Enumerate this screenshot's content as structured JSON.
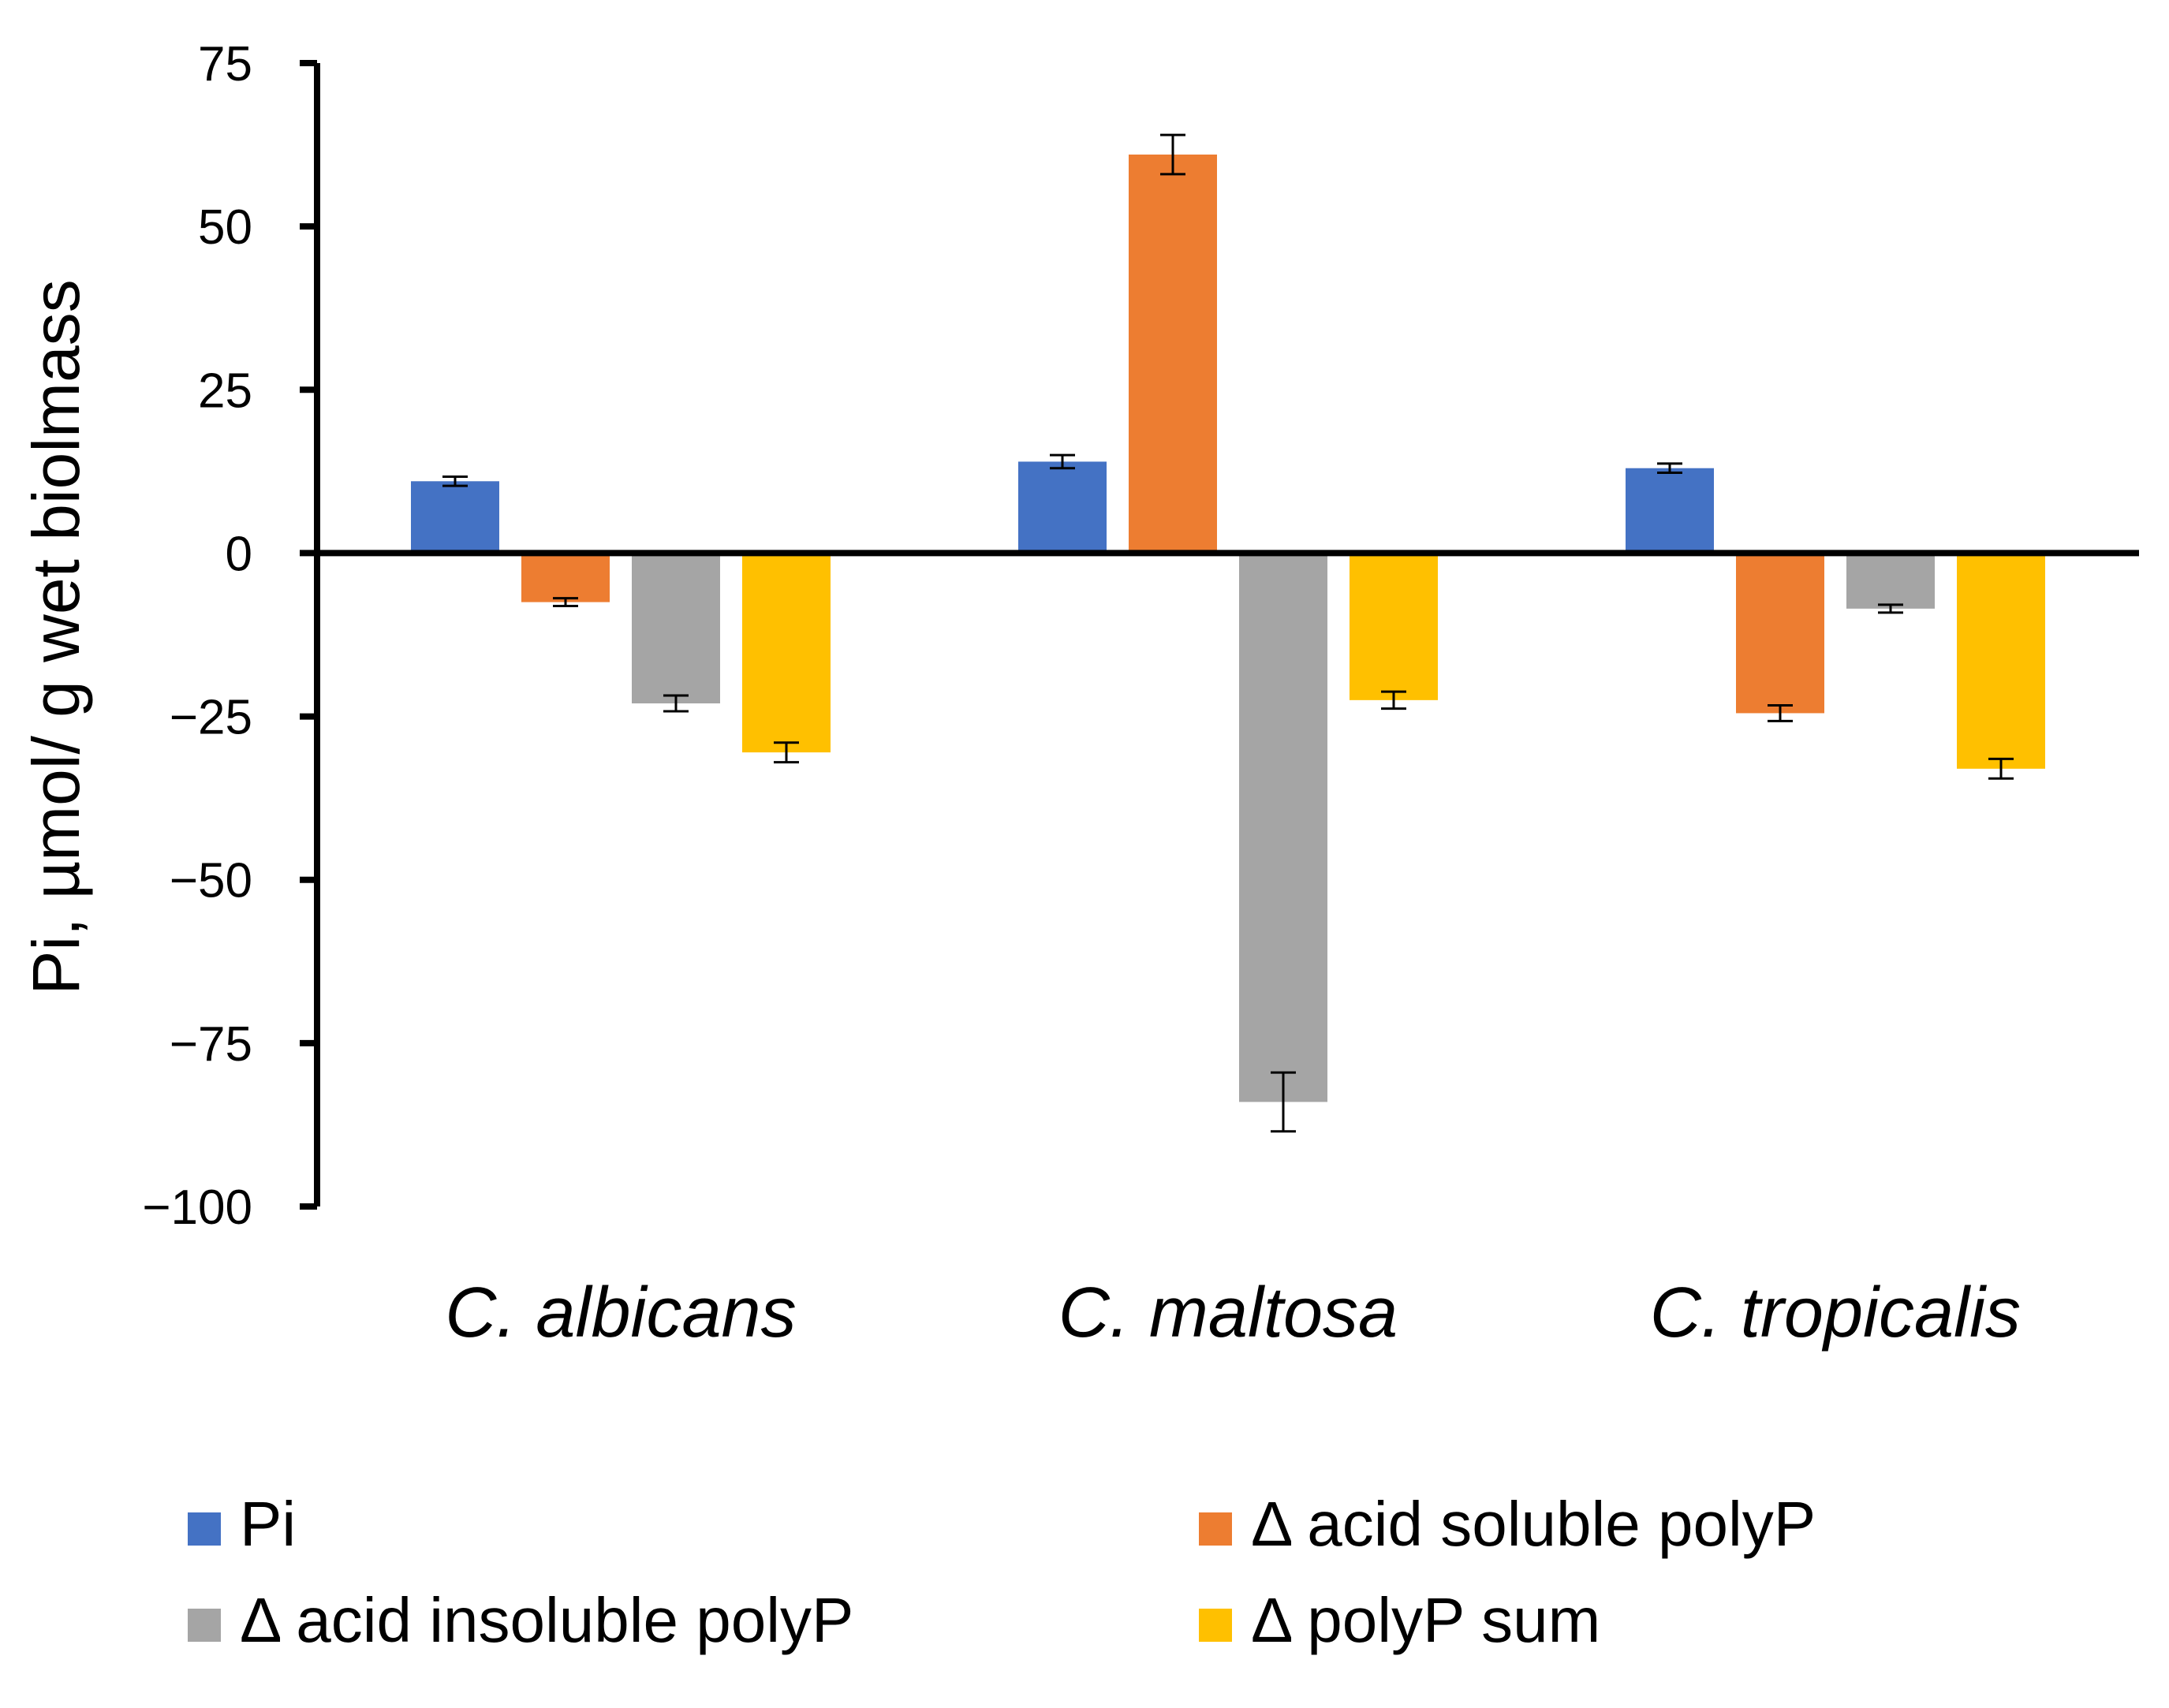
{
  "chart_data": {
    "type": "bar",
    "title": "",
    "xlabel": "",
    "ylabel": "Pi, µmol/ g wet biolmass",
    "ylim": [
      -100,
      75
    ],
    "yticks": [
      75,
      50,
      25,
      0,
      -25,
      -50,
      -75,
      -100
    ],
    "ytick_labels": [
      "75",
      "50",
      "25",
      "0",
      "−25",
      "−50",
      "−75",
      "−100"
    ],
    "categories": [
      "C. albicans",
      "C. maltosa",
      "C. tropicalis"
    ],
    "series": [
      {
        "name": "Pi",
        "color": "#4472C4",
        "values": [
          11,
          14,
          13
        ],
        "errors": [
          0.7,
          1.0,
          0.7
        ]
      },
      {
        "name": "Δ acid soluble polyP",
        "color": "#ED7D31",
        "values": [
          -7.5,
          61,
          -24.5
        ],
        "errors": [
          0.6,
          3.0,
          1.2
        ]
      },
      {
        "name": "Δ acid insoluble polyP",
        "color": "#A5A5A5",
        "values": [
          -23,
          -84,
          -8.5
        ],
        "errors": [
          1.2,
          4.5,
          0.6
        ]
      },
      {
        "name": "Δ polyP sum",
        "color": "#FFC000",
        "values": [
          -30.5,
          -22.5,
          -33
        ],
        "errors": [
          1.5,
          1.3,
          1.5
        ]
      }
    ],
    "legend_position": "bottom",
    "grid": false
  }
}
